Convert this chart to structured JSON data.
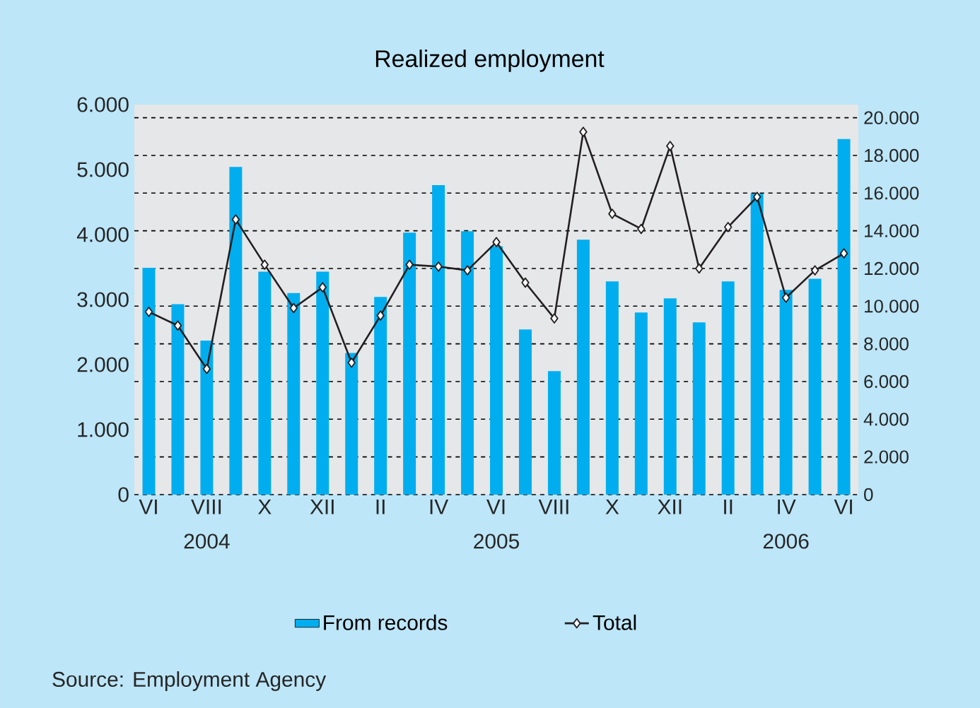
{
  "chart_data": {
    "type": "bar",
    "title": "Realized employment",
    "categories": [
      "VI",
      null,
      "VIII",
      null,
      "X",
      null,
      "XII",
      null,
      "II",
      null,
      "IV",
      null,
      "VI",
      null,
      "VIII",
      null,
      "X",
      null,
      "XII",
      null,
      "II",
      null,
      "IV",
      null,
      "VI"
    ],
    "series": [
      {
        "name": "From records",
        "color": "#00aeef",
        "values": [
          3490,
          2930,
          2370,
          5040,
          3430,
          3100,
          3430,
          2180,
          3040,
          4030,
          4760,
          4050,
          3820,
          2540,
          1900,
          3920,
          3280,
          2800,
          3020,
          2650,
          3280,
          4630,
          3150,
          3320,
          5470
        ]
      },
      {
        "name": "Total",
        "type": "line",
        "axis": "y2",
        "color": "#231f20",
        "values": [
          9700,
          8970,
          6670,
          14600,
          12200,
          9900,
          11000,
          7000,
          9500,
          12200,
          12100,
          11900,
          13400,
          11250,
          9350,
          19250,
          14900,
          14100,
          18500,
          12000,
          14200,
          15800,
          10450,
          11900,
          12800
        ]
      }
    ],
    "ylim": [
      0,
      6000
    ],
    "yticks": [
      0,
      {
        "value": 1000,
        "label": "1.000"
      },
      {
        "value": 2000,
        "label": "2.000"
      },
      {
        "value": 3000,
        "label": "3.000"
      },
      {
        "value": 4000,
        "label": "4.000"
      },
      {
        "value": 5000,
        "label": "5.000"
      },
      {
        "value": 6000,
        "label": "6.000"
      }
    ],
    "y2lim": [
      0,
      20700
    ],
    "y2ticks": [
      0,
      {
        "value": 2000,
        "label": "2.000"
      },
      {
        "value": 4000,
        "label": "4.000"
      },
      {
        "value": 6000,
        "label": "6.000"
      },
      {
        "value": 8000,
        "label": "8.000"
      },
      {
        "value": 10000,
        "label": "10.000"
      },
      {
        "value": 12000,
        "label": "12.000"
      },
      {
        "value": 14000,
        "label": "14.000"
      },
      {
        "value": 16000,
        "label": "16.000"
      },
      {
        "value": 18000,
        "label": "18.000"
      },
      {
        "value": 20000,
        "label": "20.000"
      }
    ],
    "grid": "y",
    "legend": "bottom",
    "marker": "diamond",
    "line_style": "solid",
    "annotations": [
      "2004",
      "2005",
      "2006",
      "Source: Employment Agency"
    ]
  }
}
